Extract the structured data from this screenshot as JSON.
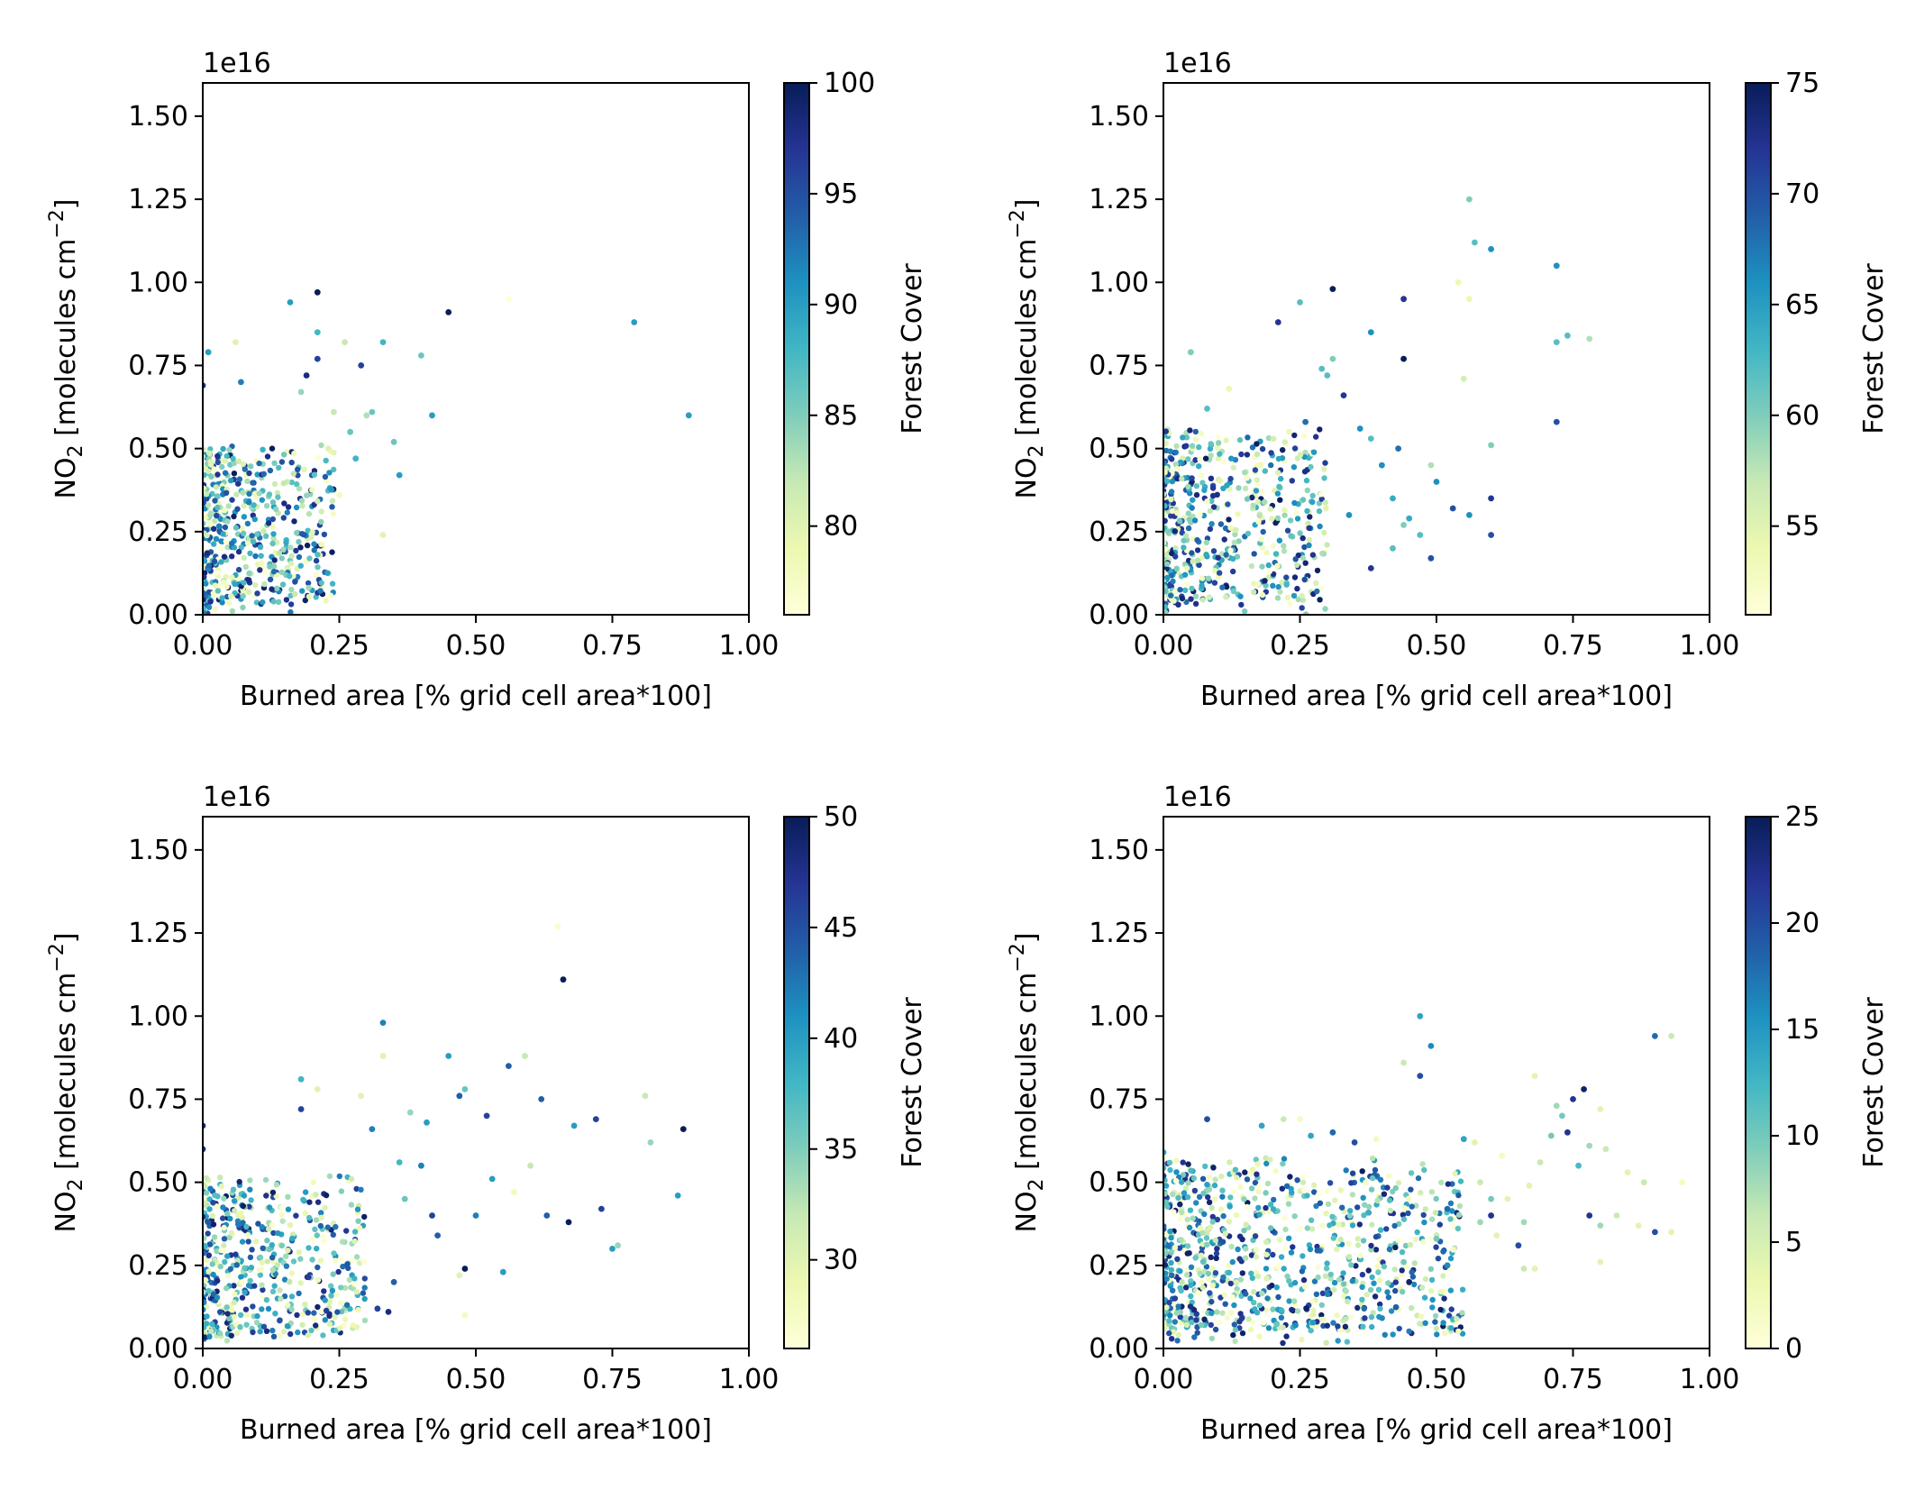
{
  "chart_data": [
    {
      "type": "scatter",
      "xlabel": "Burned area [% grid cell area*100]",
      "ylabel_main": "NO",
      "ylabel_sub": "2",
      "ylabel_rest": " [molecules cm",
      "ylabel_sup": "−2",
      "ylabel_end": "]",
      "offset_text": "1e16",
      "xlim": [
        0,
        1
      ],
      "ylim": [
        0,
        1.6
      ],
      "xticks": [
        "0.00",
        "0.25",
        "0.50",
        "0.75",
        "1.00"
      ],
      "yticks": [
        "0.00",
        "0.25",
        "0.50",
        "0.75",
        "1.00",
        "1.25",
        "1.50"
      ],
      "colorbar": {
        "label": "Forest Cover",
        "min": 76,
        "max": 100,
        "ticks": [
          80,
          85,
          90,
          95,
          100
        ]
      },
      "cluster": {
        "xmax": 0.24,
        "ymin": 0.03,
        "ymax": 0.5,
        "n": 520
      },
      "points": [
        [
          0.21,
          0.97,
          100
        ],
        [
          0.45,
          0.91,
          100
        ],
        [
          0.56,
          0.95,
          76
        ],
        [
          0.79,
          0.88,
          90
        ],
        [
          0.89,
          0.6,
          90
        ],
        [
          0.16,
          0.94,
          90
        ],
        [
          0.21,
          0.85,
          88
        ],
        [
          0.29,
          0.75,
          96
        ],
        [
          0.33,
          0.82,
          88
        ],
        [
          0.4,
          0.78,
          86
        ],
        [
          0.42,
          0.6,
          90
        ],
        [
          0.35,
          0.52,
          86
        ],
        [
          0.36,
          0.42,
          90
        ],
        [
          0.3,
          0.6,
          83
        ],
        [
          0.26,
          0.82,
          82
        ],
        [
          0.01,
          0.79,
          90
        ],
        [
          0.06,
          0.82,
          80
        ],
        [
          0.19,
          0.72,
          98
        ],
        [
          0.27,
          0.55,
          86
        ],
        [
          0.23,
          0.5,
          80
        ],
        [
          0.33,
          0.24,
          80
        ],
        [
          0.25,
          0.36,
          78
        ],
        [
          0.28,
          0.47,
          88
        ],
        [
          0.18,
          0.67,
          84
        ],
        [
          0.07,
          0.7,
          92
        ],
        [
          0.0,
          0.69,
          98
        ],
        [
          0.31,
          0.61,
          86
        ],
        [
          0.24,
          0.61,
          82
        ],
        [
          0.21,
          0.77,
          96
        ]
      ]
    },
    {
      "type": "scatter",
      "xlabel": "Burned area [% grid cell area*100]",
      "ylabel_main": "NO",
      "ylabel_sub": "2",
      "ylabel_rest": " [molecules cm",
      "ylabel_sup": "−2",
      "ylabel_end": "]",
      "offset_text": "1e16",
      "xlim": [
        0,
        1
      ],
      "ylim": [
        0,
        1.6
      ],
      "xticks": [
        "0.00",
        "0.25",
        "0.50",
        "0.75",
        "1.00"
      ],
      "yticks": [
        "0.00",
        "0.25",
        "0.50",
        "0.75",
        "1.00",
        "1.25",
        "1.50"
      ],
      "colorbar": {
        "label": "Forest Cover",
        "min": 51,
        "max": 75,
        "ticks": [
          55,
          60,
          65,
          70,
          75
        ]
      },
      "cluster": {
        "xmax": 0.3,
        "ymin": 0.03,
        "ymax": 0.55,
        "n": 560
      },
      "points": [
        [
          0.56,
          1.25,
          60
        ],
        [
          0.57,
          1.12,
          62
        ],
        [
          0.6,
          1.1,
          66
        ],
        [
          0.72,
          1.05,
          66
        ],
        [
          0.54,
          1.0,
          54
        ],
        [
          0.56,
          0.95,
          54
        ],
        [
          0.31,
          0.98,
          75
        ],
        [
          0.44,
          0.95,
          72
        ],
        [
          0.38,
          0.85,
          66
        ],
        [
          0.44,
          0.77,
          75
        ],
        [
          0.21,
          0.88,
          72
        ],
        [
          0.25,
          0.94,
          62
        ],
        [
          0.72,
          0.82,
          62
        ],
        [
          0.74,
          0.84,
          62
        ],
        [
          0.78,
          0.83,
          58
        ],
        [
          0.72,
          0.58,
          70
        ],
        [
          0.6,
          0.51,
          60
        ],
        [
          0.6,
          0.35,
          72
        ],
        [
          0.6,
          0.24,
          70
        ],
        [
          0.55,
          0.71,
          56
        ],
        [
          0.5,
          0.4,
          66
        ],
        [
          0.49,
          0.45,
          58
        ],
        [
          0.42,
          0.35,
          64
        ],
        [
          0.44,
          0.27,
          60
        ],
        [
          0.45,
          0.29,
          64
        ],
        [
          0.53,
          0.32,
          70
        ],
        [
          0.56,
          0.3,
          66
        ],
        [
          0.43,
          0.5,
          68
        ],
        [
          0.4,
          0.45,
          66
        ],
        [
          0.36,
          0.56,
          66
        ],
        [
          0.38,
          0.53,
          62
        ],
        [
          0.33,
          0.66,
          72
        ],
        [
          0.3,
          0.72,
          62
        ],
        [
          0.29,
          0.74,
          62
        ],
        [
          0.26,
          0.58,
          68
        ],
        [
          0.47,
          0.24,
          62
        ],
        [
          0.42,
          0.2,
          62
        ],
        [
          0.34,
          0.3,
          66
        ],
        [
          0.49,
          0.17,
          70
        ],
        [
          0.38,
          0.14,
          72
        ],
        [
          0.31,
          0.77,
          60
        ],
        [
          0.05,
          0.79,
          60
        ],
        [
          0.12,
          0.68,
          54
        ],
        [
          0.08,
          0.62,
          62
        ]
      ]
    },
    {
      "type": "scatter",
      "xlabel": "Burned area [% grid cell area*100]",
      "ylabel_main": "NO",
      "ylabel_sub": "2",
      "ylabel_rest": " [molecules cm",
      "ylabel_sup": "−2",
      "ylabel_end": "]",
      "offset_text": "1e16",
      "xlim": [
        0,
        1
      ],
      "ylim": [
        0,
        1.6
      ],
      "xticks": [
        "0.00",
        "0.25",
        "0.50",
        "0.75",
        "1.00"
      ],
      "yticks": [
        "0.00",
        "0.25",
        "0.50",
        "0.75",
        "1.00",
        "1.25",
        "1.50"
      ],
      "colorbar": {
        "label": "Forest Cover",
        "min": 26,
        "max": 50,
        "ticks": [
          30,
          35,
          40,
          45,
          50
        ]
      },
      "cluster": {
        "xmax": 0.3,
        "ymin": 0.04,
        "ymax": 0.5,
        "n": 540
      },
      "points": [
        [
          0.66,
          1.11,
          50
        ],
        [
          0.65,
          1.27,
          27
        ],
        [
          0.33,
          0.98,
          42
        ],
        [
          0.45,
          0.88,
          40
        ],
        [
          0.56,
          0.85,
          44
        ],
        [
          0.59,
          0.88,
          32
        ],
        [
          0.62,
          0.75,
          44
        ],
        [
          0.48,
          0.78,
          36
        ],
        [
          0.52,
          0.7,
          46
        ],
        [
          0.47,
          0.76,
          44
        ],
        [
          0.72,
          0.69,
          46
        ],
        [
          0.68,
          0.67,
          40
        ],
        [
          0.81,
          0.76,
          32
        ],
        [
          0.82,
          0.62,
          34
        ],
        [
          0.88,
          0.66,
          50
        ],
        [
          0.87,
          0.46,
          40
        ],
        [
          0.75,
          0.3,
          40
        ],
        [
          0.76,
          0.31,
          34
        ],
        [
          0.73,
          0.42,
          46
        ],
        [
          0.67,
          0.38,
          50
        ],
        [
          0.63,
          0.4,
          44
        ],
        [
          0.6,
          0.55,
          32
        ],
        [
          0.57,
          0.47,
          28
        ],
        [
          0.53,
          0.51,
          40
        ],
        [
          0.5,
          0.4,
          42
        ],
        [
          0.42,
          0.4,
          46
        ],
        [
          0.43,
          0.34,
          44
        ],
        [
          0.47,
          0.22,
          30
        ],
        [
          0.48,
          0.24,
          50
        ],
        [
          0.55,
          0.23,
          40
        ],
        [
          0.48,
          0.1,
          28
        ],
        [
          0.4,
          0.55,
          42
        ],
        [
          0.37,
          0.45,
          36
        ],
        [
          0.33,
          0.88,
          30
        ],
        [
          0.29,
          0.76,
          30
        ],
        [
          0.21,
          0.78,
          30
        ],
        [
          0.18,
          0.81,
          38
        ],
        [
          0.18,
          0.72,
          46
        ],
        [
          0.41,
          0.68,
          40
        ],
        [
          0.38,
          0.71,
          34
        ],
        [
          0.35,
          0.2,
          44
        ],
        [
          0.32,
          0.12,
          46
        ],
        [
          0.34,
          0.11,
          48
        ],
        [
          0.36,
          0.56,
          38
        ],
        [
          0.31,
          0.66,
          42
        ],
        [
          0.0,
          0.67,
          48
        ],
        [
          0.0,
          0.6,
          48
        ]
      ]
    },
    {
      "type": "scatter",
      "xlabel": "Burned area [% grid cell area*100]",
      "ylabel_main": "NO",
      "ylabel_sub": "2",
      "ylabel_rest": " [molecules cm",
      "ylabel_sup": "−2",
      "ylabel_end": "]",
      "offset_text": "1e16",
      "xlim": [
        0,
        1
      ],
      "ylim": [
        0,
        1.6
      ],
      "xticks": [
        "0.00",
        "0.25",
        "0.50",
        "0.75",
        "1.00"
      ],
      "yticks": [
        "0.00",
        "0.25",
        "0.50",
        "0.75",
        "1.00",
        "1.25",
        "1.50"
      ],
      "colorbar": {
        "label": "Forest Cover",
        "min": 0,
        "max": 25,
        "ticks": [
          0,
          5,
          10,
          15,
          20,
          25
        ]
      },
      "cluster": {
        "xmax": 0.55,
        "ymin": 0.04,
        "ymax": 0.55,
        "n": 900
      },
      "points": [
        [
          0.47,
          1.0,
          14
        ],
        [
          0.49,
          0.91,
          16
        ],
        [
          0.44,
          0.86,
          6
        ],
        [
          0.47,
          0.82,
          20
        ],
        [
          0.9,
          0.94,
          18
        ],
        [
          0.93,
          0.94,
          6
        ],
        [
          0.77,
          0.78,
          24
        ],
        [
          0.75,
          0.75,
          22
        ],
        [
          0.68,
          0.82,
          4
        ],
        [
          0.72,
          0.73,
          8
        ],
        [
          0.73,
          0.7,
          10
        ],
        [
          0.74,
          0.65,
          22
        ],
        [
          0.8,
          0.72,
          4
        ],
        [
          0.78,
          0.61,
          8
        ],
        [
          0.81,
          0.6,
          6
        ],
        [
          0.85,
          0.53,
          4
        ],
        [
          0.88,
          0.5,
          6
        ],
        [
          0.93,
          0.35,
          4
        ],
        [
          0.95,
          0.5,
          2
        ],
        [
          0.9,
          0.35,
          20
        ],
        [
          0.87,
          0.37,
          4
        ],
        [
          0.83,
          0.4,
          6
        ],
        [
          0.8,
          0.37,
          8
        ],
        [
          0.78,
          0.4,
          22
        ],
        [
          0.8,
          0.26,
          4
        ],
        [
          0.76,
          0.55,
          12
        ],
        [
          0.71,
          0.64,
          10
        ],
        [
          0.69,
          0.56,
          6
        ],
        [
          0.67,
          0.49,
          4
        ],
        [
          0.66,
          0.38,
          8
        ],
        [
          0.65,
          0.31,
          20
        ],
        [
          0.66,
          0.24,
          6
        ],
        [
          0.68,
          0.24,
          4
        ],
        [
          0.62,
          0.58,
          2
        ],
        [
          0.63,
          0.45,
          4
        ],
        [
          0.6,
          0.45,
          10
        ],
        [
          0.57,
          0.62,
          4
        ],
        [
          0.55,
          0.63,
          14
        ],
        [
          0.58,
          0.5,
          6
        ],
        [
          0.6,
          0.4,
          22
        ],
        [
          0.58,
          0.38,
          8
        ],
        [
          0.61,
          0.34,
          4
        ],
        [
          0.52,
          0.42,
          18
        ],
        [
          0.5,
          0.33,
          10
        ],
        [
          0.52,
          0.25,
          16
        ],
        [
          0.45,
          0.2,
          24
        ],
        [
          0.44,
          0.26,
          10
        ],
        [
          0.39,
          0.63,
          2
        ],
        [
          0.35,
          0.62,
          20
        ],
        [
          0.31,
          0.65,
          18
        ],
        [
          0.27,
          0.64,
          14
        ],
        [
          0.25,
          0.69,
          2
        ],
        [
          0.22,
          0.69,
          6
        ],
        [
          0.18,
          0.67,
          14
        ],
        [
          0.08,
          0.69,
          20
        ],
        [
          0.0,
          0.59,
          14
        ]
      ]
    }
  ]
}
